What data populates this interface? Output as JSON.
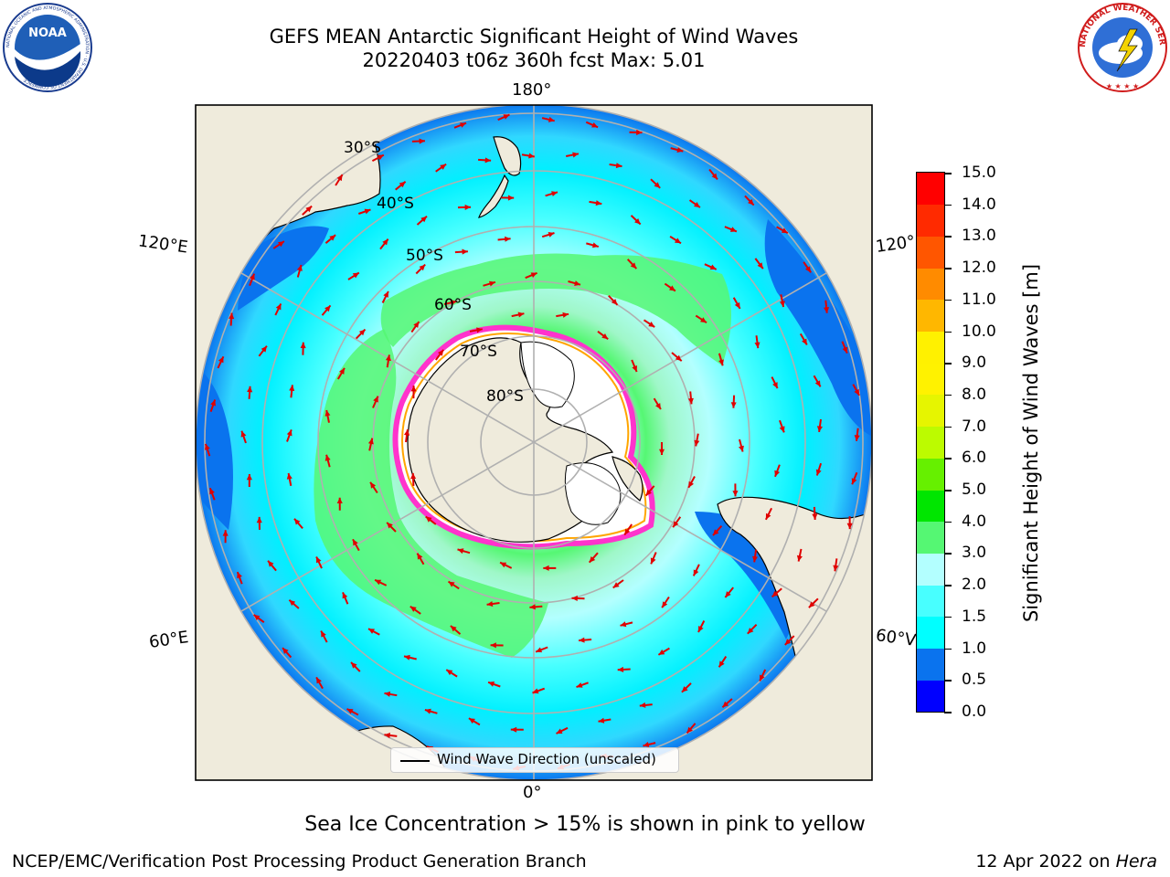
{
  "title": {
    "line1": "GEFS MEAN Antarctic Significant Height of Wind Waves",
    "line2": "20220403 t06z 360h fcst   Max: 5.01"
  },
  "map": {
    "projection": "south polar stereographic",
    "colors": {
      "land": "#efebdc",
      "ice": "#ffffff",
      "ice_edge": "#ff33cc",
      "grid": "#b0b0b0",
      "arrow": "#e00000"
    },
    "longitude_labels": {
      "top": "180°",
      "bottom": "0°",
      "left_upper": "120°E",
      "right_upper": "120°",
      "left_lower": "60°E",
      "right_lower": "60°V"
    },
    "latitude_labels": [
      "30°S",
      "40°S",
      "50°S",
      "60°S",
      "70°S",
      "80°S"
    ],
    "legend": "Wind Wave Direction (unscaled)"
  },
  "colorbar": {
    "title": "Significant Height of Wind Waves [m]",
    "ticks": [
      "0.0",
      "0.5",
      "1.0",
      "1.5",
      "2.0",
      "3.0",
      "4.0",
      "5.0",
      "6.0",
      "7.0",
      "8.0",
      "9.0",
      "10.0",
      "11.0",
      "12.0",
      "13.0",
      "14.0",
      "15.0"
    ],
    "colors": [
      "#0000ff",
      "#0a73ee",
      "#00ffff",
      "#48ffff",
      "#b3ffff",
      "#55f773",
      "#00e600",
      "#66f000",
      "#bcfb00",
      "#e6f500",
      "#fff200",
      "#fff100",
      "#ffb700",
      "#ff8b00",
      "#ff5600",
      "#ff2a00",
      "#ff0000"
    ]
  },
  "footer": {
    "note": "Sea Ice Concentration > 15% is shown in pink to yellow",
    "credit_left": "NCEP/EMC/Verification Post Processing Product Generation Branch",
    "credit_right_date": "12 Apr 2022 on ",
    "credit_right_host": "Hera"
  },
  "logos": {
    "noaa": "NOAA",
    "noaa_ring": "NATIONAL OCEANIC AND ATMOSPHERIC ADMINISTRATION · U.S. DEPARTMENT OF COMMERCE",
    "nws_ring": "NATIONAL WEATHER SERVICE"
  }
}
